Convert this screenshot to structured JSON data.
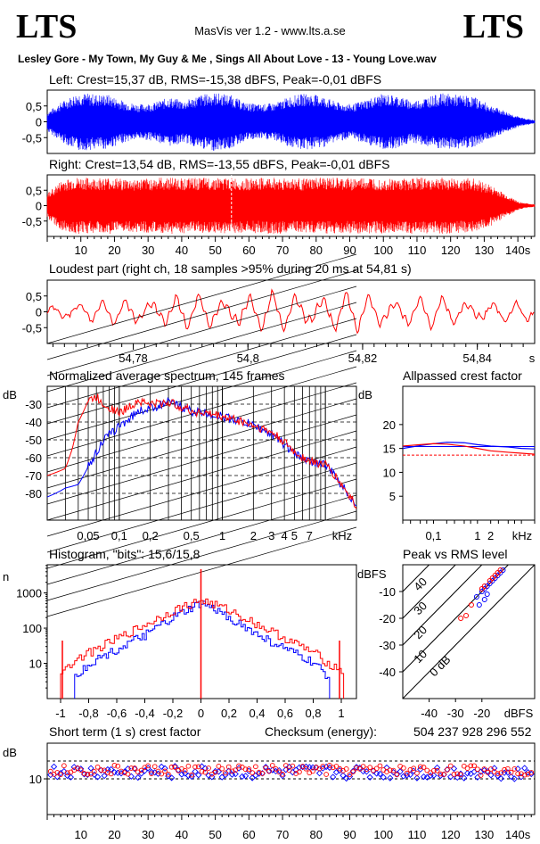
{
  "header": {
    "logo_left": "LTS",
    "logo_right": "LTS",
    "app_title": "MasVis ver 1.2 - www.lts.a.se",
    "song_title": "Lesley Gore - My Town, My Guy & Me , Sings All About Love - 13 - Young Love.wav"
  },
  "colors": {
    "left": "#0000ff",
    "right": "#ff0000",
    "axis": "#000000"
  },
  "chart_data": [
    {
      "type": "line",
      "title": "Left: Crest=15,37 dB, RMS=-15,38 dBFS, Peak=-0,01 dBFS",
      "channel": "left",
      "x_range": [
        0,
        145
      ],
      "ylim": [
        -1,
        1
      ],
      "y_ticks": [
        "0,5",
        "0",
        "-0,5"
      ],
      "envelope": [
        0.3,
        0.65,
        0.92,
        0.88,
        0.86,
        0.66,
        0.55,
        0.6,
        0.78,
        0.66,
        0.85,
        0.92,
        0.86,
        0.6,
        0.55,
        0.6,
        0.82,
        0.9,
        0.83,
        0.62,
        0.55,
        0.72,
        0.88,
        0.83,
        0.65,
        0.8,
        0.9,
        0.85,
        0.8,
        0.55,
        0.35,
        0.15,
        0.05
      ]
    },
    {
      "type": "line",
      "title": "Right: Crest=13,54 dB, RMS=-13,55 dBFS, Peak=-0,01 dBFS",
      "channel": "right",
      "x_range": [
        0,
        145
      ],
      "ylim": [
        -1,
        1
      ],
      "y_ticks": [
        "0,5",
        "0",
        "-0,5"
      ],
      "x_ticks": [
        "10",
        "20",
        "30",
        "40",
        "50",
        "60",
        "70",
        "80",
        "90",
        "100",
        "110",
        "120",
        "130",
        "140s"
      ],
      "marker_x": 54.81,
      "envelope": [
        0.4,
        0.85,
        0.92,
        0.9,
        0.92,
        0.88,
        0.86,
        0.9,
        0.93,
        0.9,
        0.9,
        0.92,
        0.9,
        0.88,
        0.9,
        0.92,
        0.9,
        0.88,
        0.92,
        0.9,
        0.9,
        0.92,
        0.9,
        0.88,
        0.92,
        0.9,
        0.92,
        0.88,
        0.9,
        0.7,
        0.4,
        0.12,
        0.04
      ]
    },
    {
      "type": "line",
      "title": "Loudest part (right ch, 18 samples >95% during 20 ms at 54,81 s)",
      "channel": "right",
      "x_range": [
        54.765,
        54.85
      ],
      "ylim": [
        -1,
        1
      ],
      "y_ticks": [
        "0,5",
        "0",
        "-0,5"
      ],
      "x_ticks": [
        {
          "value": 54.78,
          "label": "54,78"
        },
        {
          "value": 54.8,
          "label": "54,8"
        },
        {
          "value": 54.82,
          "label": "54,82"
        },
        {
          "value": 54.84,
          "label": "54,84"
        }
      ],
      "x_unit": "s"
    },
    {
      "type": "line",
      "title": "Normalized average spectrum, 145 frames",
      "ylabel": "dB",
      "xlabel": "kHz",
      "y_ticks": [
        "-30",
        "-40",
        "-50",
        "-60",
        "-70",
        "-80"
      ],
      "x_ticks": [
        "0,05",
        "0,1",
        "0,2",
        "0,5",
        "1",
        "2",
        "3",
        "4",
        "5",
        "7"
      ],
      "series": [
        {
          "name": "right",
          "freq_khz": [
            0.02,
            0.03,
            0.035,
            0.04,
            0.05,
            0.06,
            0.07,
            0.1,
            0.15,
            0.2,
            0.3,
            0.5,
            1,
            2,
            3,
            5,
            7,
            10,
            15,
            20
          ],
          "db": [
            -70,
            -66,
            -55,
            -40,
            -28,
            -26,
            -30,
            -35,
            -28,
            -30,
            -29,
            -34,
            -37,
            -42,
            -46,
            -57,
            -62,
            -64,
            -77,
            -87
          ]
        },
        {
          "name": "left",
          "freq_khz": [
            0.02,
            0.03,
            0.04,
            0.05,
            0.06,
            0.07,
            0.1,
            0.15,
            0.2,
            0.3,
            0.5,
            1,
            2,
            3,
            5,
            7,
            10,
            15,
            20
          ],
          "db": [
            -82,
            -77,
            -75,
            -65,
            -57,
            -50,
            -42,
            -34,
            -32,
            -29,
            -34,
            -37,
            -42,
            -47,
            -58,
            -62,
            -64,
            -77,
            -87
          ]
        }
      ]
    },
    {
      "type": "line",
      "title": "Allpassed crest factor",
      "ylabel": "dB",
      "xlabel": "kHz",
      "y_ticks": [
        "20",
        "15",
        "10",
        "5"
      ],
      "x_ticks": [
        "0,1",
        "1",
        "2"
      ],
      "ref_lines": [
        {
          "channel": "left",
          "value": 15.4
        },
        {
          "channel": "right",
          "value": 13.6
        }
      ],
      "series": [
        {
          "name": "left",
          "freq_khz": [
            0.02,
            0.05,
            0.1,
            0.2,
            0.5,
            1,
            2,
            5,
            10,
            20
          ],
          "db": [
            15.0,
            15.6,
            16.0,
            16.3,
            16.2,
            15.8,
            15.5,
            15.3,
            15.0,
            14.9
          ]
        },
        {
          "name": "right",
          "freq_khz": [
            0.02,
            0.05,
            0.1,
            0.2,
            0.5,
            1,
            2,
            5,
            10,
            20
          ],
          "db": [
            15.5,
            15.8,
            16.0,
            15.9,
            15.5,
            15.0,
            14.5,
            14.2,
            14.0,
            13.8
          ]
        }
      ]
    },
    {
      "type": "line",
      "title": "Histogram, \"bits\": 15,6/15,8",
      "ylabel": "n",
      "y_ticks": [
        "1000",
        "100",
        "10"
      ],
      "x_ticks": [
        "-1",
        "-0,8",
        "-0,6",
        "-0,4",
        "-0,2",
        "0",
        "0,2",
        "0,4",
        "0,6",
        "0,8",
        "1"
      ],
      "ylim_log10": [
        0,
        3.8
      ],
      "series": [
        {
          "name": "right",
          "x": [
            -1,
            -0.9,
            -0.8,
            -0.6,
            -0.4,
            -0.2,
            0,
            0.2,
            0.4,
            0.6,
            0.8,
            0.9,
            1
          ],
          "log10_n": [
            0.8,
            1.1,
            1.3,
            1.7,
            2.1,
            2.5,
            2.8,
            2.5,
            2.1,
            1.7,
            1.3,
            1.0,
            0.8
          ]
        },
        {
          "name": "left",
          "x": [
            -0.9,
            -0.8,
            -0.6,
            -0.4,
            -0.2,
            0,
            0.2,
            0.4,
            0.6,
            0.8,
            0.9
          ],
          "log10_n": [
            0.6,
            1.0,
            1.4,
            1.8,
            2.3,
            2.7,
            2.3,
            1.8,
            1.4,
            1.0,
            0.6
          ]
        }
      ]
    },
    {
      "type": "scatter",
      "title": "Peak vs RMS level",
      "ylabel": "dBFS",
      "xlabel": "dBFS",
      "y_ticks": [
        "-10",
        "-20",
        "-30",
        "-40"
      ],
      "x_ticks": [
        "-40",
        "-30",
        "-20"
      ],
      "diag_labels": [
        "40",
        "30",
        "20",
        "10",
        "0 dB"
      ],
      "series": [
        {
          "name": "left",
          "x": [
            -22,
            -20,
            -19,
            -18,
            -17,
            -16,
            -15,
            -14,
            -13,
            -12,
            -18,
            -19,
            -21
          ],
          "y": [
            -12,
            -10,
            -9,
            -8,
            -7,
            -6,
            -5,
            -4,
            -3,
            -2,
            -11,
            -13,
            -15
          ]
        },
        {
          "name": "right",
          "x": [
            -28,
            -26,
            -24,
            -20,
            -19,
            -17,
            -16,
            -15,
            -14,
            -13
          ],
          "y": [
            -20,
            -19,
            -15,
            -9,
            -8,
            -6,
            -5,
            -4,
            -3,
            -2
          ]
        }
      ]
    },
    {
      "type": "scatter",
      "title": "Short term (1 s) crest factor",
      "checksum_label": "Checksum (energy):",
      "checksum_value": "504 237 928 296 552",
      "ylabel": "dB",
      "y_ticks": [
        "10"
      ],
      "x_ticks": [
        "10",
        "20",
        "30",
        "40",
        "50",
        "60",
        "70",
        "80",
        "90",
        "100",
        "110",
        "120",
        "130",
        "140s"
      ],
      "ref_lines": [
        12.5,
        10
      ],
      "series": [
        {
          "name": "left",
          "x_range": [
            0,
            145
          ],
          "mean": 10.9,
          "spread": 0.9
        },
        {
          "name": "right",
          "x_range": [
            0,
            145
          ],
          "mean": 11.2,
          "spread": 0.7
        }
      ]
    }
  ]
}
